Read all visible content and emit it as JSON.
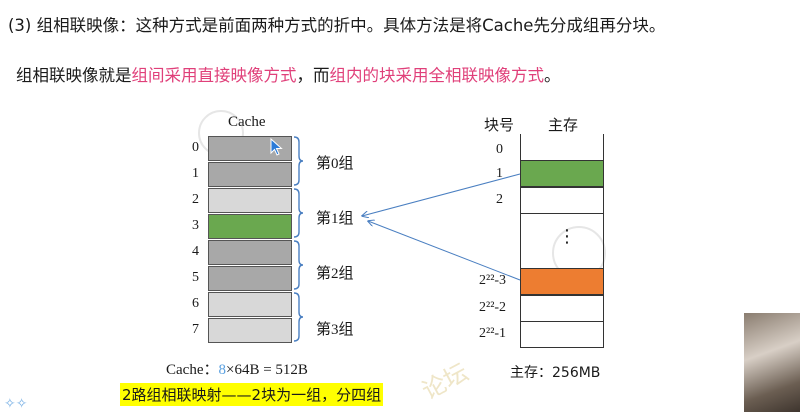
{
  "heading": {
    "prefix": "(3) 组相联映像：这种方式是前面两种方式的折中。具体方法是将Cache先分成组再分块。"
  },
  "summary": {
    "part1": "组相联映像就是",
    "part2": "组间采用直接映像方式",
    "part3": "，而",
    "part4": "组内的块采用全相联映像方式",
    "part5": "。",
    "highlight_color": "#e0407a"
  },
  "cache": {
    "title": "Cache",
    "block_numbers": [
      "0",
      "1",
      "2",
      "3",
      "4",
      "5",
      "6",
      "7"
    ],
    "block_colors": [
      "#a8a8a8",
      "#a8a8a8",
      "#d8d8d8",
      "#6aa84f",
      "#a8a8a8",
      "#a8a8a8",
      "#d8d8d8",
      "#d8d8d8"
    ],
    "groups": [
      "第0组",
      "第1组",
      "第2组",
      "第3组"
    ],
    "caption_prefix": "Cache：",
    "caption_highlight": "8",
    "caption_suffix": "×64B = 512B"
  },
  "memory": {
    "col_block": "块号",
    "col_main": "主存",
    "block_labels": [
      "0",
      "1",
      "2",
      "2²²-3",
      "2²²-2",
      "2²²-1"
    ],
    "ellipsis": "⋮",
    "caption": "主存：256MB",
    "highlight_green": "#6aa84f",
    "highlight_orange": "#ed7d31"
  },
  "note": "2路组相联映射——2块为一组，分四组",
  "watermark": "论坛"
}
